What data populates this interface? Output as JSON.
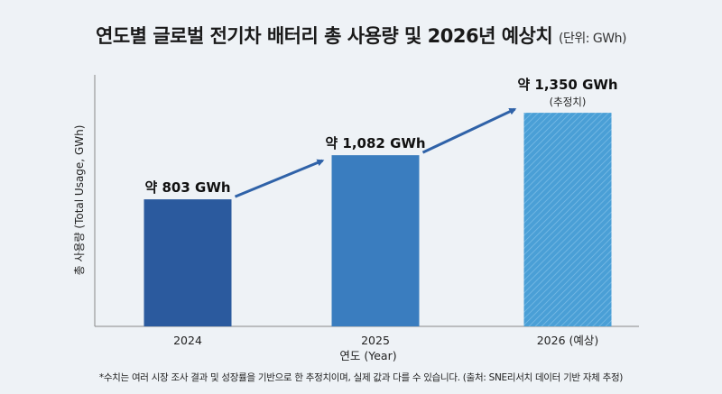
{
  "chart_data": {
    "type": "bar",
    "title": "연도별 글로벌 전기차 배터리 총 사용량 및 2026년 예상치",
    "title_unit": "(단위: GWh)",
    "xlabel": "연도 (Year)",
    "ylabel": "총 사용량 (Total Usage, GWh)",
    "categories": [
      "2024",
      "2025",
      "2026 (예상)"
    ],
    "values": [
      803,
      1082,
      1350
    ],
    "data_labels": [
      "약 803 GWh",
      "약 1,082 GWh",
      "약 1,350 GWh"
    ],
    "sub_labels": [
      "",
      "",
      "(추정치)"
    ],
    "colors": [
      "#2b5a9e",
      "#3a7dbf",
      "#4a9fd6"
    ],
    "hatched": [
      false,
      false,
      true
    ],
    "ylim": [
      0,
      1590
    ],
    "grid": false,
    "y_ticks_shown": false,
    "trend_arrows": true,
    "arrow_color": "#2f62a8"
  },
  "footnote": "*수치는 여러 시장 조사 결과 및 성장률을 기반으로 한 추정치이며, 실제 값과 다를 수 있습니다. (출처: SNE리서치 데이터 기반 자체 추정)"
}
